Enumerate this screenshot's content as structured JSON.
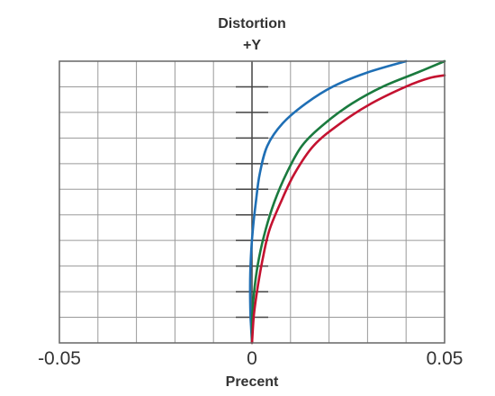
{
  "chart_data": {
    "type": "line",
    "title": "Distortion",
    "subtitle": "+Y",
    "xlabel": "Precent",
    "ylabel": "",
    "xlim": [
      -0.05,
      0.05
    ],
    "ylim": [
      0,
      1
    ],
    "x_ticks": [
      "-0.05",
      "0",
      "0.05"
    ],
    "grid": true,
    "legend": "none",
    "colors": {
      "frame": "#666666",
      "grid": "#9a9a9a",
      "axis": "#444444",
      "text": "#333333"
    },
    "series": [
      {
        "color": "#1f6fb5",
        "points": [
          [
            0,
            0
          ],
          [
            -0.0002,
            0.05
          ],
          [
            -0.0004,
            0.1
          ],
          [
            -0.0005,
            0.2
          ],
          [
            -0.0003,
            0.3
          ],
          [
            0.0002,
            0.4
          ],
          [
            0.001,
            0.5
          ],
          [
            0.002,
            0.6
          ],
          [
            0.004,
            0.7
          ],
          [
            0.008,
            0.78
          ],
          [
            0.014,
            0.85
          ],
          [
            0.021,
            0.91
          ],
          [
            0.03,
            0.96
          ],
          [
            0.04,
            1.0
          ]
        ]
      },
      {
        "color": "#1a7a3e",
        "points": [
          [
            0,
            0
          ],
          [
            0.0001,
            0.1
          ],
          [
            0.0007,
            0.2
          ],
          [
            0.0018,
            0.3
          ],
          [
            0.0035,
            0.4
          ],
          [
            0.0058,
            0.5
          ],
          [
            0.0089,
            0.6
          ],
          [
            0.013,
            0.7
          ],
          [
            0.019,
            0.78
          ],
          [
            0.026,
            0.85
          ],
          [
            0.034,
            0.91
          ],
          [
            0.043,
            0.96
          ],
          [
            0.05,
            1.0
          ]
        ]
      },
      {
        "color": "#c41230",
        "points": [
          [
            0,
            0
          ],
          [
            0.0005,
            0.1
          ],
          [
            0.0015,
            0.2
          ],
          [
            0.0028,
            0.3
          ],
          [
            0.0045,
            0.4
          ],
          [
            0.0075,
            0.5
          ],
          [
            0.011,
            0.6
          ],
          [
            0.016,
            0.7
          ],
          [
            0.023,
            0.78
          ],
          [
            0.031,
            0.85
          ],
          [
            0.04,
            0.91
          ],
          [
            0.046,
            0.94
          ],
          [
            0.05,
            0.95
          ]
        ]
      }
    ]
  }
}
